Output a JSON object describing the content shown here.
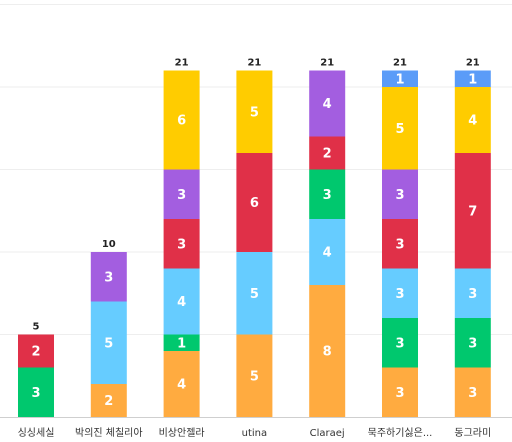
{
  "chart_data": {
    "type": "bar",
    "stacked": true,
    "categories": [
      "싱싱세실",
      "박의진 체칠리아",
      "비상안젤라",
      "utina",
      "Claraej",
      "묵주하기싫은...",
      "동그라미"
    ],
    "ylim": [
      0,
      25
    ],
    "grid": true,
    "series": [
      {
        "color": "#ffab40",
        "values": [
          0,
          2,
          4,
          5,
          8,
          3,
          3
        ]
      },
      {
        "color": "#00c86e",
        "values": [
          3,
          0,
          1,
          0,
          0,
          3,
          3
        ]
      },
      {
        "color": "#e03048",
        "values": [
          2,
          0,
          0,
          0,
          0,
          0,
          0
        ]
      },
      {
        "color": "#66ccff",
        "values": [
          0,
          5,
          4,
          5,
          4,
          3,
          3
        ]
      },
      {
        "color": "#00c86e",
        "values": [
          0,
          0,
          0,
          0,
          3,
          0,
          0
        ]
      },
      {
        "color": "#e03048",
        "values": [
          0,
          0,
          3,
          6,
          2,
          3,
          7
        ]
      },
      {
        "color": "#a35ee0",
        "values": [
          0,
          3,
          3,
          0,
          4,
          3,
          0
        ]
      },
      {
        "color": "#ffcc00",
        "values": [
          0,
          0,
          6,
          5,
          0,
          5,
          4
        ]
      },
      {
        "color": "#5b9cf8",
        "values": [
          0,
          0,
          0,
          0,
          0,
          1,
          1
        ]
      }
    ],
    "totals": [
      "5",
      "10",
      "21",
      "21",
      "21",
      "21",
      "21"
    ]
  }
}
